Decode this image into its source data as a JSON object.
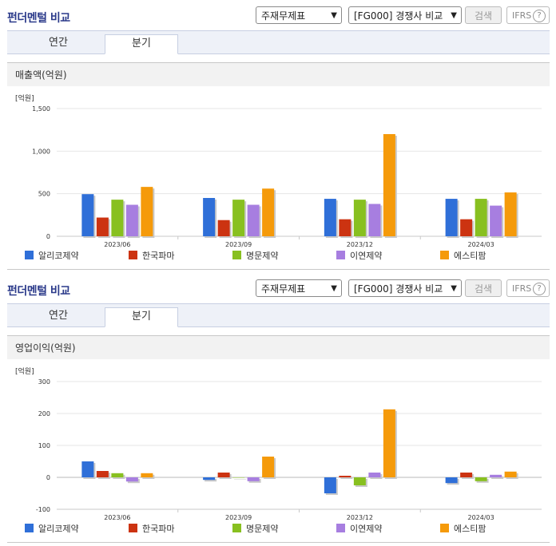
{
  "sections": [
    {
      "title": "펀더멘털 비교",
      "select1": "주재무제표",
      "select2": "[FG000] 경쟁사 비교",
      "search_label": "검색",
      "ifrs_label": "IFRS",
      "ifrs_help": "?",
      "tabs": [
        {
          "label": "연간"
        },
        {
          "label": "분기"
        }
      ],
      "active_tab": 1,
      "subheader": "매출액(억원)"
    },
    {
      "title": "펀더멘털 비교",
      "select1": "주재무제표",
      "select2": "[FG000] 경쟁사 비교",
      "search_label": "검색",
      "ifrs_label": "IFRS",
      "ifrs_help": "?",
      "tabs": [
        {
          "label": "연간"
        },
        {
          "label": "분기"
        }
      ],
      "active_tab": 1,
      "subheader": "영업이익(억원)"
    }
  ],
  "chart_data": [
    {
      "type": "bar",
      "unit_label": "[억원]",
      "categories": [
        "2023/06",
        "2023/09",
        "2023/12",
        "2024/03"
      ],
      "ylim": [
        0,
        1500
      ],
      "yticks": [
        0,
        500,
        1000,
        1500
      ],
      "ytick_labels": [
        "0",
        "500",
        "1,000",
        "1,500"
      ],
      "legend_position": "bottom",
      "series": [
        {
          "name": "알리코제약",
          "color": "#2f6fd8",
          "values": [
            495,
            450,
            440,
            440
          ]
        },
        {
          "name": "한국파마",
          "color": "#cc3311",
          "values": [
            220,
            190,
            200,
            200
          ]
        },
        {
          "name": "명문제약",
          "color": "#88c020",
          "values": [
            430,
            430,
            430,
            440
          ]
        },
        {
          "name": "이연제약",
          "color": "#a77ee0",
          "values": [
            370,
            370,
            380,
            360
          ]
        },
        {
          "name": "에스티팜",
          "color": "#f59a0a",
          "values": [
            580,
            560,
            1200,
            515
          ]
        }
      ]
    },
    {
      "type": "bar",
      "unit_label": "[억원]",
      "categories": [
        "2023/06",
        "2023/09",
        "2023/12",
        "2024/03"
      ],
      "ylim": [
        -100,
        300
      ],
      "yticks": [
        -100,
        0,
        100,
        200,
        300
      ],
      "ytick_labels": [
        "-100",
        "0",
        "100",
        "200",
        "300"
      ],
      "legend_position": "bottom",
      "series": [
        {
          "name": "알리코제약",
          "color": "#2f6fd8",
          "values": [
            50,
            -8,
            -50,
            -18
          ]
        },
        {
          "name": "한국파마",
          "color": "#cc3311",
          "values": [
            20,
            15,
            5,
            15
          ]
        },
        {
          "name": "명문제약",
          "color": "#88c020",
          "values": [
            13,
            0,
            -25,
            -12
          ]
        },
        {
          "name": "이연제약",
          "color": "#a77ee0",
          "values": [
            -13,
            -12,
            15,
            8
          ]
        },
        {
          "name": "에스티팜",
          "color": "#f59a0a",
          "values": [
            13,
            65,
            213,
            18
          ]
        }
      ]
    }
  ]
}
